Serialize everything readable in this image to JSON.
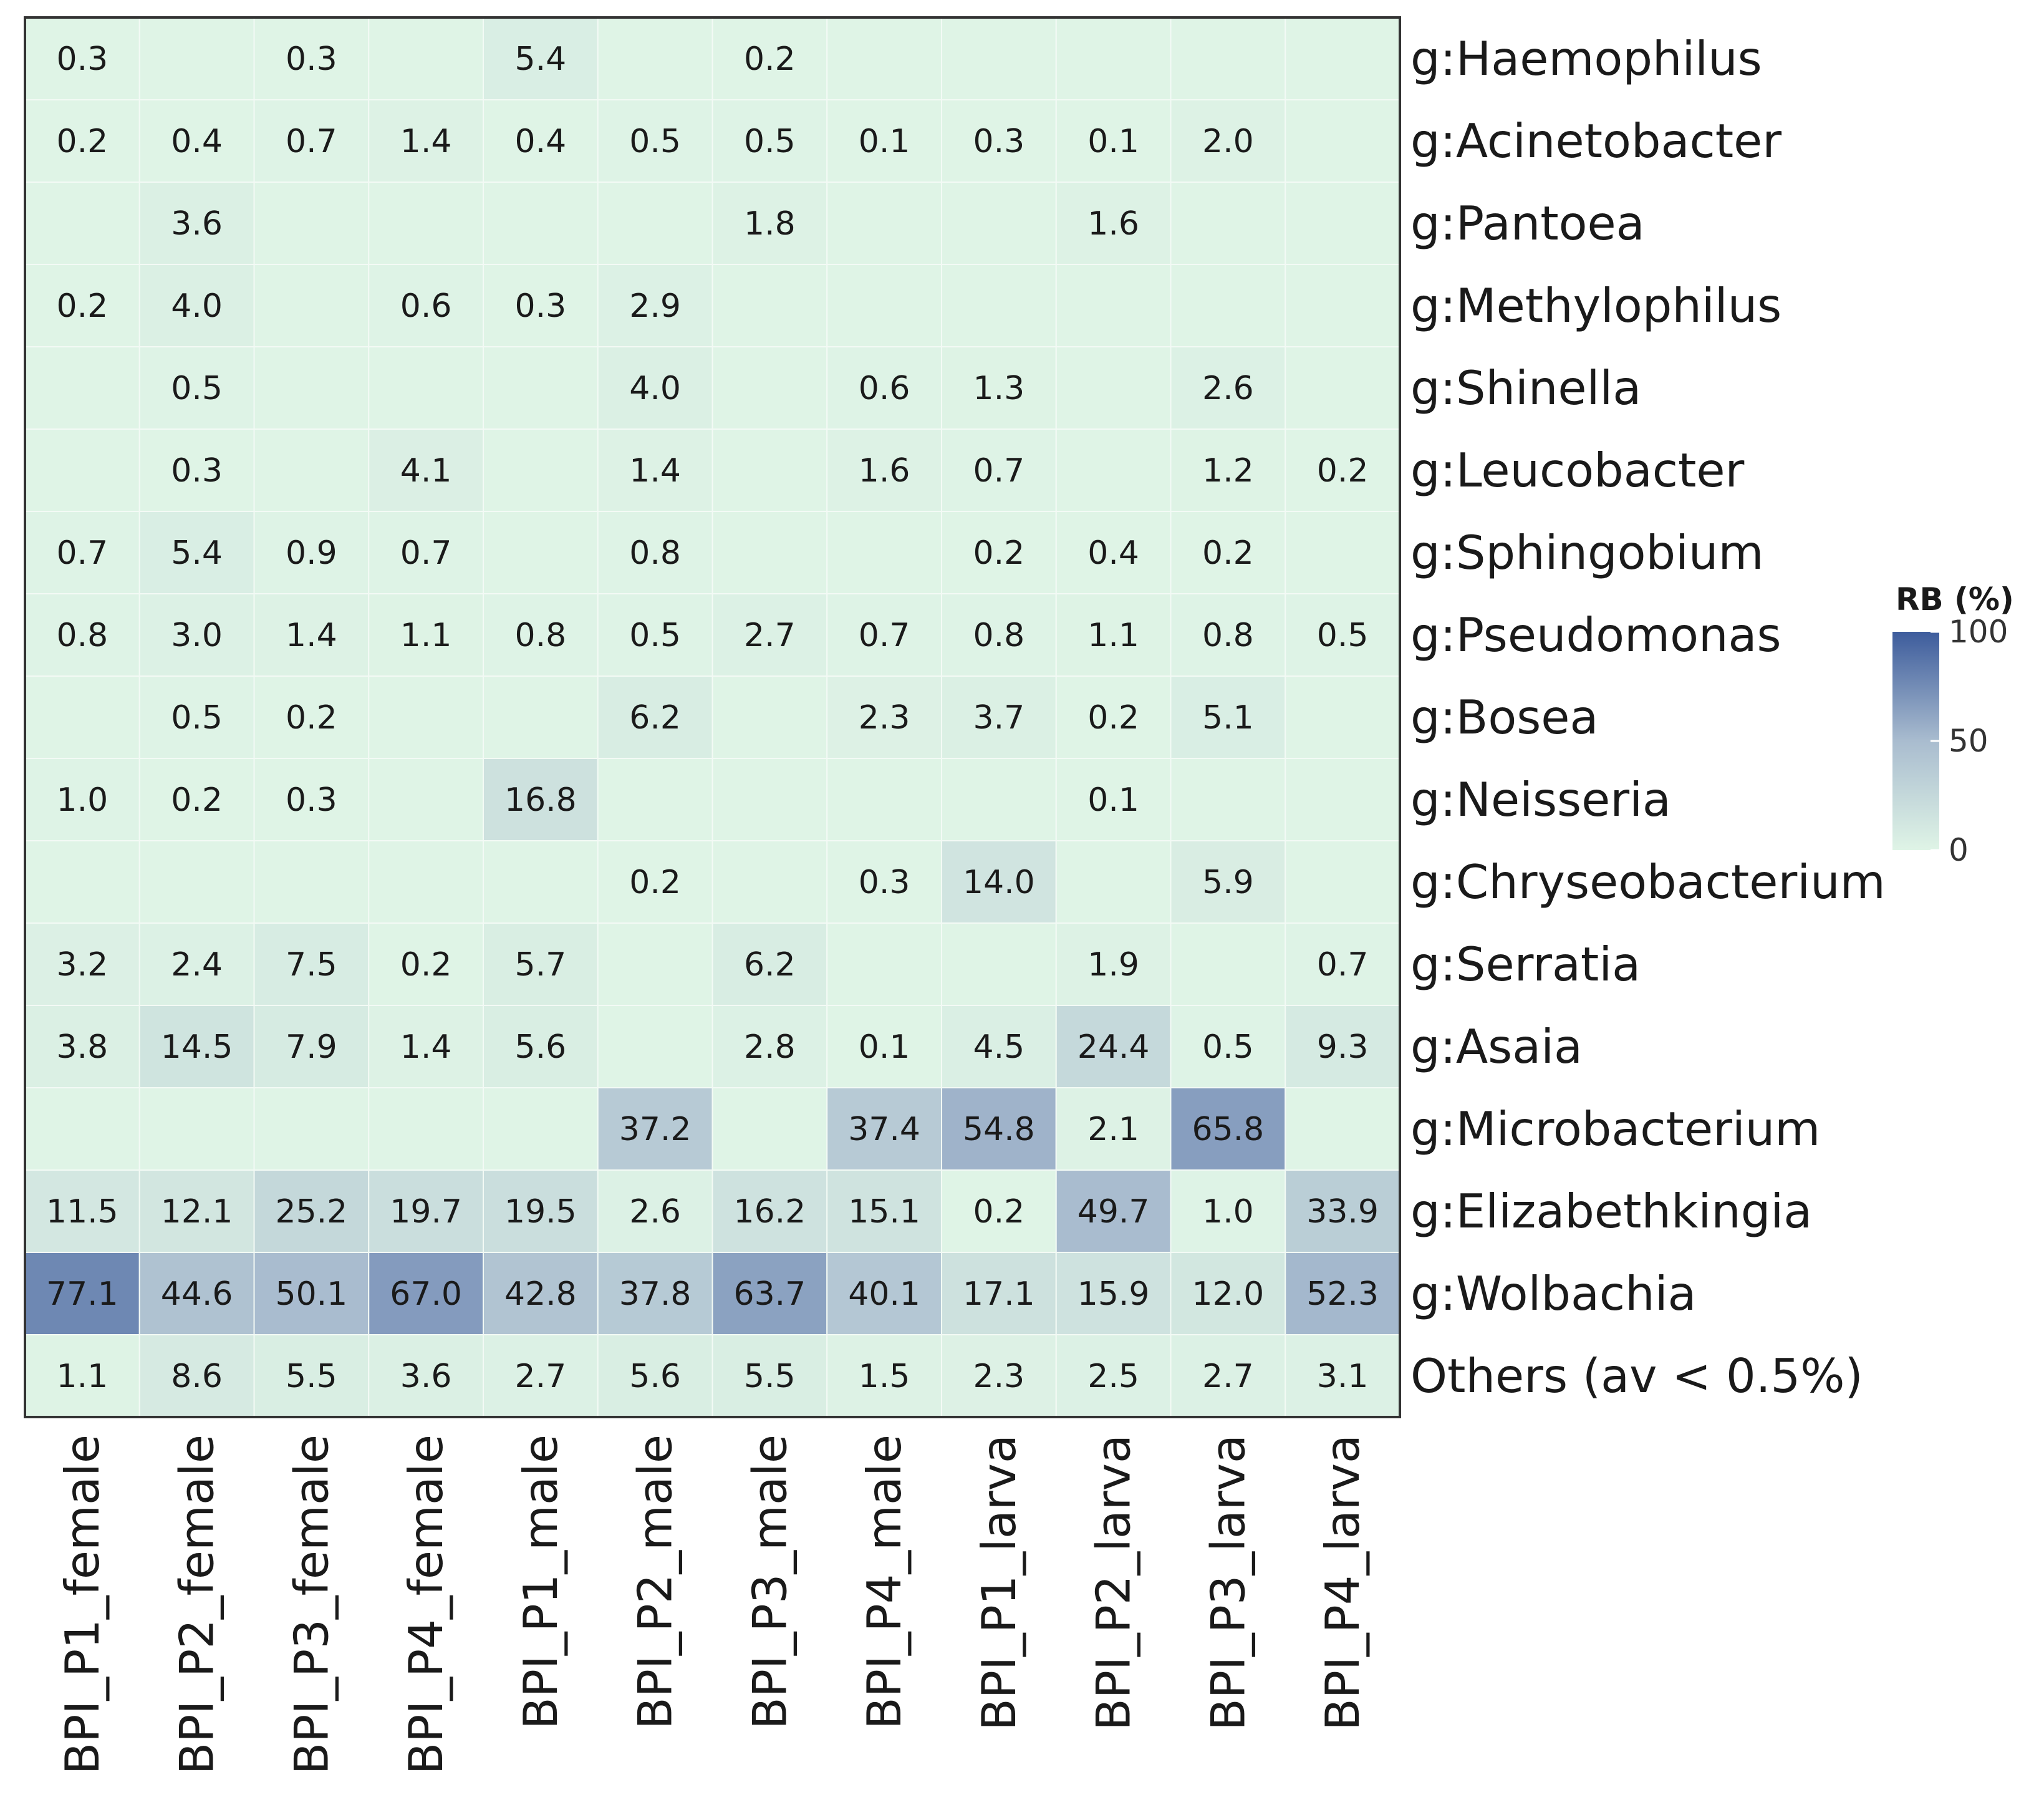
{
  "chart_data": {
    "type": "heatmap",
    "columns": [
      "BPI_P1_female",
      "BPI_P2_female",
      "BPI_P3_female",
      "BPI_P4_female",
      "BPI_P1_male",
      "BPI_P2_male",
      "BPI_P3_male",
      "BPI_P4_male",
      "BPI_P1_larva",
      "BPI_P2_larva",
      "BPI_P3_larva",
      "BPI_P4_larva"
    ],
    "rows": [
      "g:Haemophilus",
      "g:Acinetobacter",
      "g:Pantoea",
      "g:Methylophilus",
      "g:Shinella",
      "g:Leucobacter",
      "g:Sphingobium",
      "g:Pseudomonas",
      "g:Bosea",
      "g:Neisseria",
      "g:Chryseobacterium",
      "g:Serratia",
      "g:Asaia",
      "g:Microbacterium",
      "g:Elizabethkingia",
      "g:Wolbachia",
      "Others (av < 0.5%)"
    ],
    "values": [
      [
        0.3,
        null,
        0.3,
        null,
        5.4,
        null,
        0.2,
        null,
        null,
        null,
        null,
        null
      ],
      [
        0.2,
        0.4,
        0.7,
        1.4,
        0.4,
        0.5,
        0.5,
        0.1,
        0.3,
        0.1,
        2.0,
        null
      ],
      [
        null,
        3.6,
        null,
        null,
        null,
        null,
        1.8,
        null,
        null,
        1.6,
        null,
        null
      ],
      [
        0.2,
        4.0,
        null,
        0.6,
        0.3,
        2.9,
        null,
        null,
        null,
        null,
        null,
        null
      ],
      [
        null,
        0.5,
        null,
        null,
        null,
        4.0,
        null,
        0.6,
        1.3,
        null,
        2.6,
        null
      ],
      [
        null,
        0.3,
        null,
        4.1,
        null,
        1.4,
        null,
        1.6,
        0.7,
        null,
        1.2,
        0.2
      ],
      [
        0.7,
        5.4,
        0.9,
        0.7,
        null,
        0.8,
        null,
        null,
        0.2,
        0.4,
        0.2,
        null
      ],
      [
        0.8,
        3.0,
        1.4,
        1.1,
        0.8,
        0.5,
        2.7,
        0.7,
        0.8,
        1.1,
        0.8,
        0.5
      ],
      [
        null,
        0.5,
        0.2,
        null,
        null,
        6.2,
        null,
        2.3,
        3.7,
        0.2,
        5.1,
        null
      ],
      [
        1.0,
        0.2,
        0.3,
        null,
        16.8,
        null,
        null,
        null,
        null,
        0.1,
        null,
        null
      ],
      [
        null,
        null,
        null,
        null,
        null,
        0.2,
        null,
        0.3,
        14.0,
        null,
        5.9,
        null
      ],
      [
        3.2,
        2.4,
        7.5,
        0.2,
        5.7,
        null,
        6.2,
        null,
        null,
        1.9,
        null,
        0.7
      ],
      [
        3.8,
        14.5,
        7.9,
        1.4,
        5.6,
        null,
        2.8,
        0.1,
        4.5,
        24.4,
        0.5,
        9.3
      ],
      [
        null,
        null,
        null,
        null,
        null,
        37.2,
        null,
        37.4,
        54.8,
        2.1,
        65.8,
        null
      ],
      [
        11.5,
        12.1,
        25.2,
        19.7,
        19.5,
        2.6,
        16.2,
        15.1,
        0.2,
        49.7,
        1.0,
        33.9
      ],
      [
        77.1,
        44.6,
        50.1,
        67.0,
        42.8,
        37.8,
        63.7,
        40.1,
        17.1,
        15.9,
        12.0,
        52.3
      ],
      [
        1.1,
        8.6,
        5.5,
        3.6,
        2.7,
        5.6,
        5.5,
        1.5,
        2.3,
        2.5,
        2.7,
        3.1
      ]
    ],
    "legend": {
      "title": "RB (%)",
      "ticks": [
        100,
        50,
        0
      ],
      "range": [
        0,
        100
      ],
      "color_low": "#dff4e6",
      "color_mid": "#a9bccf",
      "color_high": "#3d5c9c"
    }
  }
}
